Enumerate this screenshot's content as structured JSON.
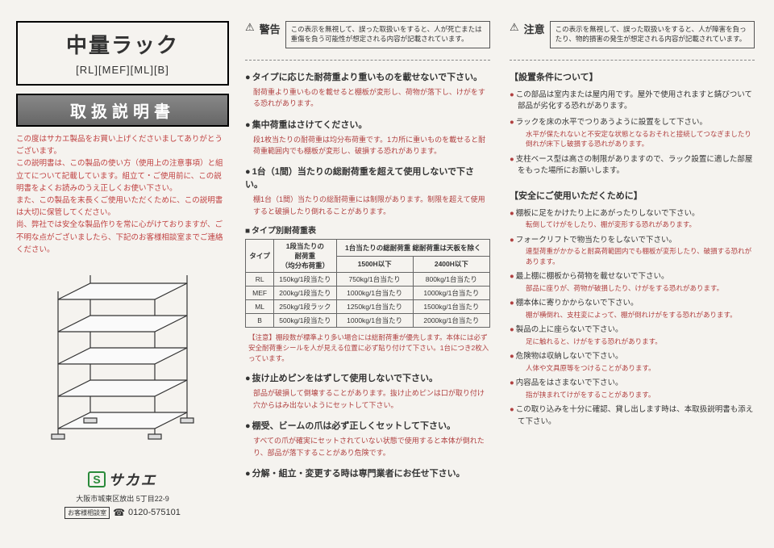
{
  "left": {
    "title": "中量ラック",
    "models": "[RL][MEF][ML][B]",
    "banner": "取扱説明書",
    "intro": "この度はサカエ製品をお買い上げくださいましてありがとうございます。\nこの説明書は、この製品の使い方（使用上の注意事項）と組立てについて記載しています。組立て・ご使用前に、この説明書をよくお読みのうえ正しくお使い下さい。\nまた、この製品を末長くご使用いただくために、この説明書は大切に保管してください。\n尚、弊社では安全な製品作りを常に心がけておりますが、ご不明な点がございましたら、下記のお客様相談室までご連絡ください。",
    "logo_s": "S",
    "logo_name": "サカエ",
    "address": "大阪市城東区放出 5丁目22-9",
    "tel_label": "お客様相談室",
    "tel": "0120-575101"
  },
  "mid": {
    "warn_label": "警告",
    "warn_box": "この表示を無視して、誤った取扱いをすると、人が死亡または重傷を負う可能性が想定される内容が記載されています。",
    "b1": "タイプに応じた耐荷重より重いものを載せないで下さい。",
    "b1_text": "耐荷重より重いものを載せると棚板が変形し、荷物が落下し、けがをする恐れがあります。",
    "b2": "集中荷重はさけてください。",
    "b2_text": "段1枚当たりの耐荷重は均分布荷重です。1カ所に重いものを載せると耐荷重範囲内でも棚板が変形し、破損する恐れがあります。",
    "b3": "1台（1間）当たりの総耐荷重を超えて使用しないで下さい。",
    "b3_text": "棚1台（1間）当たりの総耐荷重には制限があります。制限を超えて使用すると破損したり倒れることがあります。",
    "table_title": "タイプ別耐荷重表",
    "table": {
      "h1": "タイプ",
      "h2": "1段当たりの\n耐荷重\n（均分布荷重）",
      "h3": "1台当たりの総耐荷重\n総耐荷重は天板を除く",
      "h3a": "1500H以下",
      "h3b": "2400H以下",
      "rows": [
        [
          "RL",
          "150kg/1段当たり",
          "750kg/1台当たり",
          "800kg/1台当たり"
        ],
        [
          "MEF",
          "200kg/1段当たり",
          "1000kg/1台当たり",
          "1000kg/1台当たり"
        ],
        [
          "ML",
          "250kg/1段ラック",
          "1250kg/1台当たり",
          "1500kg/1台当たり"
        ],
        [
          "B",
          "500kg/1段当たり",
          "1000kg/1台当たり",
          "2000kg/1台当たり"
        ]
      ]
    },
    "note": "【注意】棚段数が標準より多い場合には総耐荷重が優先します。本体には必ず安全耐荷重シールを人が見える位置に必ず貼り付けて下さい。1台につき2枚入っています。",
    "b4": "抜け止めピンをはずして使用しないで下さい。",
    "b4_text": "部品が破損して倒壊することがあります。抜け止めピンは口が取り付け穴からはみ出ないようにセットして下さい。",
    "b5": "棚受、ビームの爪は必ず正しくセットして下さい。",
    "b5_text": "すべての爪が確実にセットされていない状態で使用すると本体が倒れたり、部品が落下することがあり危険です。",
    "b6": "分解・組立・変更する時は専門業者にお任せ下さい。"
  },
  "right": {
    "caution_label": "注意",
    "caution_box": "この表示を無視して、誤った取扱いをすると、人が障害を負ったり、物的損害の発生が想定される内容が記載されています。",
    "sec1": "【設置条件について】",
    "r1": "この部品は室内または屋内用です。屋外で使用されますと錆びついて部品が劣化する恐れがあります。",
    "r1s": "",
    "r2": "ラックを床の水平でつりあうように設置をして下さい。",
    "r2s": "水平が保たれないと不安定な状態となるおそれと接続してつなぎましたり倒れが床下し破損する恐れがあります。",
    "r3": "支柱ベース型は高さの制限がありますので、ラック設置に適した部屋をもった場所にお願いします。",
    "r3s": "",
    "sec2": "【安全にご使用いただくために】",
    "r4": "棚板に足をかけたり上にあがったりしないで下さい。",
    "r4s": "転倒してけがをしたり、棚が変形する恐れがあります。",
    "r5": "フォークリフトで物当たりをしないで下さい。",
    "r5s": "連型荷重がかかると耐高荷範囲内でも棚板が変形したり、破損する恐れがあります。",
    "r6": "最上棚に棚板から荷物を載せないで下さい。",
    "r6s": "部品に座りが、荷物が破損したり、けがをする恐れがあります。",
    "r7": "棚本体に寄りかからないで下さい。",
    "r7s": "棚が横倒れ、支柱変によって、棚が倒れけがをする恐れがあります。",
    "r8": "製品の上に座らないで下さい。",
    "r8s": "足に触れると、けがをする恐れがあります。",
    "r9": "危険物は収納しないで下さい。",
    "r9s": "人体や文具原等をつけることがあります。",
    "r10": "内容品をはさまないで下さい。",
    "r10s": "指が挟まれてけがをすることがあります。",
    "r11": "この取り込みを十分に確認、貸し出します時は、本取扱説明書も添えて下さい。",
    "r11s": ""
  },
  "colors": {
    "accent": "#b04040",
    "green": "#2a8a3a"
  }
}
